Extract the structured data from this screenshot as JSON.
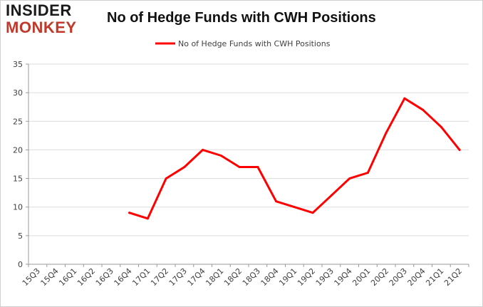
{
  "logo": {
    "line1": "INSIDER",
    "line2": "MONKEY"
  },
  "colors": {
    "series": "#ff0000",
    "grid": "#dcdcdc",
    "axis": "#9a9a9a",
    "text": "#404040"
  },
  "chart_data": {
    "type": "line",
    "title": "No of Hedge Funds with CWH Positions",
    "xlabel": "",
    "ylabel": "",
    "ylim": [
      0,
      35
    ],
    "yticks": [
      0,
      5,
      10,
      15,
      20,
      25,
      30,
      35
    ],
    "grid": true,
    "legend_position": "top-center",
    "categories": [
      "15Q3",
      "15Q4",
      "16Q1",
      "16Q2",
      "16Q3",
      "16Q4",
      "17Q1",
      "17Q2",
      "17Q3",
      "17Q4",
      "18Q1",
      "18Q2",
      "18Q3",
      "18Q4",
      "19Q1",
      "19Q2",
      "19Q3",
      "19Q4",
      "20Q1",
      "20Q2",
      "20Q3",
      "20Q4",
      "21Q1",
      "21Q2"
    ],
    "series": [
      {
        "name": "No of Hedge Funds with CWH Positions",
        "values": [
          null,
          null,
          null,
          null,
          null,
          9,
          8,
          15,
          17,
          20,
          19,
          17,
          17,
          11,
          10,
          9,
          12,
          15,
          16,
          23,
          29,
          27,
          24,
          20
        ]
      }
    ]
  }
}
